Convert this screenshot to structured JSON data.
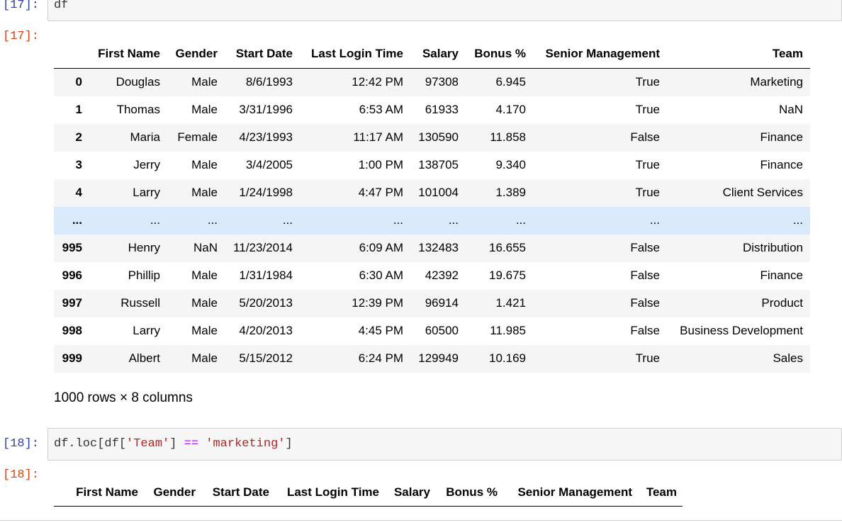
{
  "cells": [
    {
      "input_prompt": "[17]:",
      "code": [
        {
          "text": "df",
          "color": "#333333"
        }
      ],
      "output_prompt": "[17]:",
      "table": {
        "columns": [
          "First Name",
          "Gender",
          "Start Date",
          "Last Login Time",
          "Salary",
          "Bonus %",
          "Senior Management",
          "Team"
        ],
        "index": [
          "0",
          "1",
          "2",
          "3",
          "4",
          "...",
          "995",
          "996",
          "997",
          "998",
          "999"
        ],
        "rows": [
          [
            "Douglas",
            "Male",
            "8/6/1993",
            "12:42 PM",
            "97308",
            "6.945",
            "True",
            "Marketing"
          ],
          [
            "Thomas",
            "Male",
            "3/31/1996",
            "6:53 AM",
            "61933",
            "4.170",
            "True",
            "NaN"
          ],
          [
            "Maria",
            "Female",
            "4/23/1993",
            "11:17 AM",
            "130590",
            "11.858",
            "False",
            "Finance"
          ],
          [
            "Jerry",
            "Male",
            "3/4/2005",
            "1:00 PM",
            "138705",
            "9.340",
            "True",
            "Finance"
          ],
          [
            "Larry",
            "Male",
            "1/24/1998",
            "4:47 PM",
            "101004",
            "1.389",
            "True",
            "Client Services"
          ],
          [
            "...",
            "...",
            "...",
            "...",
            "...",
            "...",
            "...",
            "..."
          ],
          [
            "Henry",
            "NaN",
            "11/23/2014",
            "6:09 AM",
            "132483",
            "16.655",
            "False",
            "Distribution"
          ],
          [
            "Phillip",
            "Male",
            "1/31/1984",
            "6:30 AM",
            "42392",
            "19.675",
            "False",
            "Finance"
          ],
          [
            "Russell",
            "Male",
            "5/20/2013",
            "12:39 PM",
            "96914",
            "1.421",
            "False",
            "Product"
          ],
          [
            "Larry",
            "Male",
            "4/20/2013",
            "4:45 PM",
            "60500",
            "11.985",
            "False",
            "Business Development"
          ],
          [
            "Albert",
            "Male",
            "5/15/2012",
            "6:24 PM",
            "129949",
            "10.169",
            "True",
            "Sales"
          ]
        ]
      },
      "footer": "1000 rows × 8 columns"
    },
    {
      "input_prompt": "[18]:",
      "code": [
        {
          "text": "df.loc[df[",
          "color": "#333333"
        },
        {
          "text": "'Team'",
          "color": "#ba2121"
        },
        {
          "text": "] ",
          "color": "#333333"
        },
        {
          "text": "==",
          "color": "#aa22ff"
        },
        {
          "text": " ",
          "color": "#333333"
        },
        {
          "text": "'marketing'",
          "color": "#ba2121"
        },
        {
          "text": "]",
          "color": "#333333"
        }
      ],
      "output_prompt": "[18]:",
      "table": {
        "columns": [
          "First Name",
          "Gender",
          "Start Date",
          "Last Login Time",
          "Salary",
          "Bonus %",
          "Senior Management",
          "Team"
        ]
      }
    }
  ]
}
